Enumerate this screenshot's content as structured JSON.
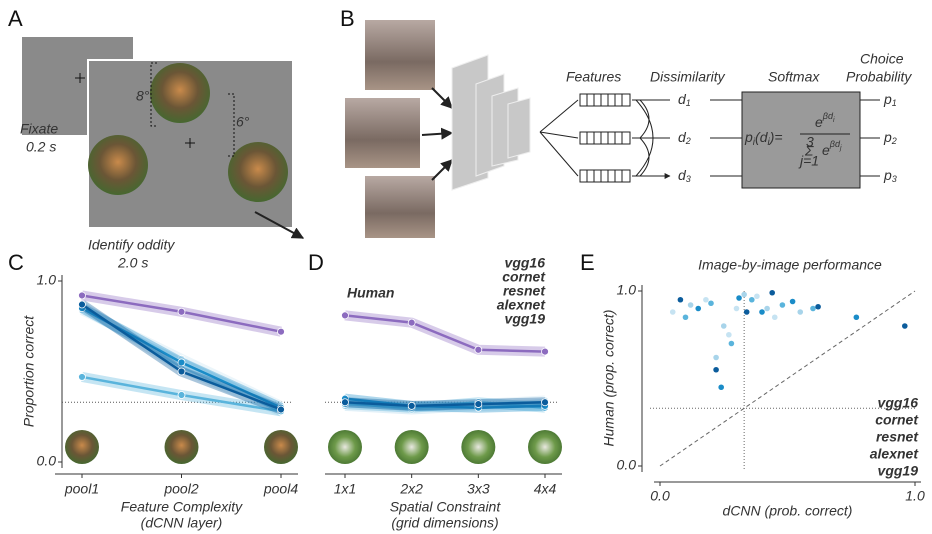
{
  "panel_labels": [
    "A",
    "B",
    "C",
    "D",
    "E"
  ],
  "diagram_a": {
    "fixate": [
      "Fixate",
      "0.2 s"
    ],
    "identify": [
      "Identify oddity",
      "2.0 s"
    ],
    "angle_1": "8°",
    "angle_2": "6°"
  },
  "diagram_b": {
    "features": "Features",
    "dissimilarity": "Dissimilarity",
    "softmax": "Softmax",
    "choice": [
      "Choice",
      "Probability"
    ],
    "d_symbol": "d",
    "p_symbol": "p",
    "indices": [
      "1",
      "2",
      "3"
    ],
    "formula": {
      "p": "p",
      "i": "i",
      "open": "(d",
      "close": ")=",
      "e": "e",
      "beta_d": "βd",
      "sum": "Σ",
      "upper": "3",
      "lower": "j=1",
      "j": "j"
    }
  },
  "chart_data": [
    {
      "type": "line",
      "categories": [
        "pool1",
        "pool2",
        "pool4"
      ],
      "ylabel": "Proportion correct",
      "xlabel": [
        "Feature Complexity",
        "(dCNN layer)"
      ],
      "ylim": [
        0,
        1
      ],
      "yticks": [
        {
          "value": 0,
          "label": "0.0"
        },
        {
          "value": 1,
          "label": "1.0"
        }
      ],
      "chance": 0.33,
      "series": [
        {
          "color": "#8c6bbf",
          "values": [
            0.92,
            0.83,
            0.72
          ]
        },
        {
          "color": "#c6e3f2",
          "values": [
            0.84,
            0.57,
            0.31
          ]
        },
        {
          "color": "#a8d4ea",
          "values": [
            0.86,
            0.52,
            0.28
          ]
        },
        {
          "color": "#5ab4dc",
          "values": [
            0.47,
            0.37,
            0.28
          ]
        },
        {
          "color": "#1a8cc8",
          "values": [
            0.85,
            0.55,
            0.3
          ]
        },
        {
          "color": "#0b5c9c",
          "values": [
            0.87,
            0.5,
            0.29
          ]
        }
      ]
    },
    {
      "type": "line",
      "categories": [
        "1x1",
        "2x2",
        "3x3",
        "4x4"
      ],
      "xlabel": [
        "Spatial Constraint",
        "(grid dimensions)"
      ],
      "ylim": [
        0,
        1
      ],
      "chance": 0.33,
      "series": [
        {
          "name": "Human",
          "color": "#8c6bbf",
          "values": [
            0.81,
            0.77,
            0.62,
            0.61
          ]
        },
        {
          "name": "vgg16",
          "color": "#c6e3f2",
          "values": [
            0.33,
            0.3,
            0.32,
            0.34
          ]
        },
        {
          "name": "cornet",
          "color": "#a8d4ea",
          "values": [
            0.31,
            0.29,
            0.31,
            0.32
          ]
        },
        {
          "name": "resnet",
          "color": "#5ab4dc",
          "values": [
            0.32,
            0.3,
            0.33,
            0.3
          ]
        },
        {
          "name": "alexnet",
          "color": "#1a8cc8",
          "values": [
            0.35,
            0.31,
            0.3,
            0.31
          ]
        },
        {
          "name": "vgg19",
          "color": "#0b5c9c",
          "values": [
            0.33,
            0.31,
            0.32,
            0.33
          ]
        }
      ]
    },
    {
      "type": "scatter",
      "title": "Image-by-image performance",
      "xlabel": "dCNN (prob. correct)",
      "ylabel": "Human (prop. correct)",
      "xlim": [
        0,
        1
      ],
      "ylim": [
        0,
        1
      ],
      "xticks": [
        {
          "value": 0,
          "label": "0.0"
        },
        {
          "value": 1,
          "label": "1.0"
        }
      ],
      "yticks": [
        {
          "value": 0,
          "label": "0.0"
        },
        {
          "value": 1,
          "label": "1.0"
        }
      ],
      "chance": 0.33,
      "series": [
        {
          "name": "vgg16",
          "color": "#c6e3f2",
          "x": [
            0.05,
            0.18,
            0.3,
            0.38,
            0.45,
            0.27
          ],
          "values": [
            0.88,
            0.95,
            0.9,
            0.97,
            0.85,
            0.75
          ]
        },
        {
          "name": "cornet",
          "color": "#a8d4ea",
          "x": [
            0.12,
            0.25,
            0.33,
            0.42,
            0.55,
            0.22
          ],
          "values": [
            0.92,
            0.8,
            0.98,
            0.9,
            0.88,
            0.62
          ]
        },
        {
          "name": "resnet",
          "color": "#5ab4dc",
          "x": [
            0.1,
            0.2,
            0.28,
            0.36,
            0.48,
            0.6
          ],
          "values": [
            0.85,
            0.93,
            0.7,
            0.95,
            0.92,
            0.9
          ]
        },
        {
          "name": "alexnet",
          "color": "#1a8cc8",
          "x": [
            0.15,
            0.24,
            0.31,
            0.4,
            0.52,
            0.77
          ],
          "values": [
            0.9,
            0.45,
            0.96,
            0.88,
            0.94,
            0.85
          ]
        },
        {
          "name": "vgg19",
          "color": "#0b5c9c",
          "x": [
            0.08,
            0.22,
            0.34,
            0.44,
            0.62,
            0.96
          ],
          "values": [
            0.95,
            0.55,
            0.88,
            0.99,
            0.91,
            0.8
          ]
        }
      ]
    }
  ]
}
